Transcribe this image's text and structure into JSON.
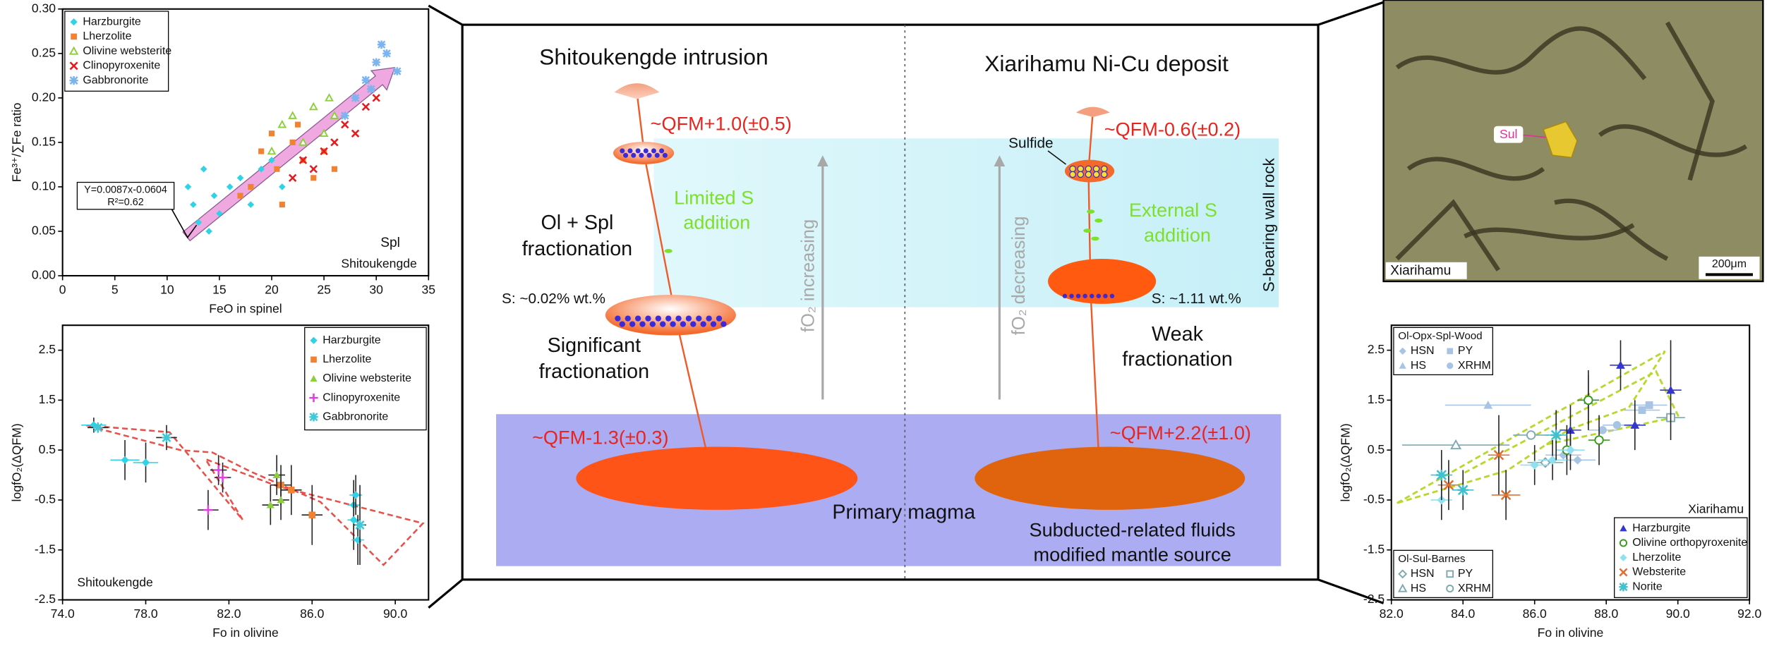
{
  "chart_data": [
    {
      "type": "scatter",
      "xlabel": "FeO in spinel",
      "ylabel": "Fe³⁺/∑Fe ratio",
      "xlim": [
        0,
        35
      ],
      "xticks": [
        0,
        5,
        10,
        15,
        20,
        25,
        30,
        35
      ],
      "ylim": [
        0,
        0.3
      ],
      "yticks": [
        {
          "value": 0,
          "label": "0.00"
        },
        {
          "value": 0.05,
          "label": "0.05"
        },
        {
          "value": 0.1,
          "label": "0.10"
        },
        {
          "value": 0.15,
          "label": "0.15"
        },
        {
          "value": 0.2,
          "label": "0.20"
        },
        {
          "value": 0.25,
          "label": "0.25"
        },
        {
          "value": 0.3,
          "label": "0.30"
        }
      ],
      "legend": "upper left",
      "annotations": [
        "Spl",
        "Shitoukengde"
      ],
      "equation": [
        "Y=0.0087x-0.0604",
        "R²=0.62"
      ],
      "series": [
        {
          "name": "Harzburgite",
          "color": "#2fd2e6",
          "marker": "diamond",
          "x": [
            12,
            12.5,
            13,
            13.5,
            14,
            14.5,
            15,
            16,
            17,
            18,
            19,
            20,
            21
          ],
          "values": [
            0.1,
            0.08,
            0.06,
            0.12,
            0.05,
            0.09,
            0.07,
            0.1,
            0.11,
            0.08,
            0.12,
            0.13,
            0.1
          ]
        },
        {
          "name": "Lherzolite",
          "color": "#f08232",
          "marker": "square",
          "x": [
            17,
            18,
            19,
            20,
            20.5,
            21,
            22,
            22.5,
            23,
            24,
            25,
            26
          ],
          "values": [
            0.09,
            0.1,
            0.14,
            0.16,
            0.12,
            0.08,
            0.15,
            0.17,
            0.13,
            0.11,
            0.14,
            0.12
          ]
        },
        {
          "name": "Olivine websterite",
          "color": "#8ccf3c",
          "marker": "triangle-open",
          "x": [
            20,
            21,
            22,
            23,
            24,
            25,
            25.5,
            26
          ],
          "values": [
            0.14,
            0.17,
            0.18,
            0.15,
            0.19,
            0.16,
            0.2,
            0.18
          ]
        },
        {
          "name": "Clinopyroxenite",
          "color": "#e8191e",
          "marker": "cross",
          "x": [
            22,
            23,
            24,
            25,
            26,
            27,
            28,
            29,
            30
          ],
          "values": [
            0.11,
            0.13,
            0.12,
            0.14,
            0.15,
            0.17,
            0.16,
            0.19,
            0.2
          ]
        },
        {
          "name": "Gabbronorite",
          "color": "#7cb4f0",
          "marker": "asterisk",
          "x": [
            27,
            28,
            29,
            30,
            31,
            32,
            29.5,
            30.5
          ],
          "values": [
            0.18,
            0.2,
            0.22,
            0.24,
            0.25,
            0.23,
            0.21,
            0.26
          ]
        }
      ]
    },
    {
      "type": "scatter",
      "xlabel": "Fo in olivine",
      "ylabel": "logfO₂(ΔQFM)",
      "xlim": [
        74,
        91.6
      ],
      "xticks": [
        {
          "value": 74,
          "label": "74.0"
        },
        {
          "value": 78,
          "label": "78.0"
        },
        {
          "value": 82,
          "label": "82.0"
        },
        {
          "value": 86,
          "label": "86.0"
        },
        {
          "value": 90,
          "label": "90.0"
        }
      ],
      "ylim": [
        -2.5,
        3
      ],
      "yticks": [
        2.5,
        1.5,
        0.5,
        -0.5,
        -1.5,
        -2.5
      ],
      "legend": "upper right",
      "annotations": [
        "Shitoukengde"
      ],
      "series": [
        {
          "name": "Harzburgite",
          "color": "#2fd2e6",
          "marker": "diamond",
          "x": [
            75.5,
            77,
            78,
            88,
            88,
            88.2,
            88.1
          ],
          "values": [
            1.0,
            0.3,
            0.25,
            -0.6,
            -0.9,
            -1.3,
            -0.4
          ],
          "xerr": [
            0.6,
            0.7,
            0.6,
            0.3,
            0.3,
            0.3,
            0.3
          ],
          "yerr": [
            0.15,
            0.4,
            0.4,
            0.5,
            0.6,
            0.5,
            0.4
          ]
        },
        {
          "name": "Lherzolite",
          "color": "#f08232",
          "marker": "square",
          "x": [
            84.5,
            85,
            86
          ],
          "values": [
            -0.2,
            -0.3,
            -0.8
          ],
          "xerr": [
            0.5,
            0.5,
            0.5
          ],
          "yerr": [
            0.4,
            0.5,
            0.6
          ]
        },
        {
          "name": "Olivine websterite",
          "color": "#8ccf3c",
          "marker": "triangle",
          "x": [
            84,
            84.3,
            84.5
          ],
          "values": [
            -0.6,
            0,
            -0.5
          ],
          "xerr": [
            0.4,
            0.4,
            0.4
          ],
          "yerr": [
            0.4,
            0.4,
            0.4
          ]
        },
        {
          "name": "Clinopyroxenite",
          "color": "#e040e0",
          "marker": "plus",
          "x": [
            81,
            81.5,
            81.7
          ],
          "values": [
            -0.7,
            0.1,
            -0.05
          ],
          "xerr": [
            0.5,
            0.4,
            0.4
          ],
          "yerr": [
            0.4,
            0.3,
            0.3
          ]
        },
        {
          "name": "Gabbronorite",
          "color": "#40c8d8",
          "marker": "asterisk",
          "x": [
            75.7,
            79,
            88.3
          ],
          "values": [
            0.95,
            0.75,
            -1.0
          ],
          "xerr": [
            0.5,
            0.5,
            0.3
          ],
          "yerr": [
            0.1,
            0.25,
            0.8
          ]
        }
      ]
    },
    {
      "type": "scatter",
      "xlabel": "Fo in olivine",
      "ylabel": "logfO₂(ΔQFM)",
      "xlim": [
        82,
        92
      ],
      "xticks": [
        {
          "value": 82,
          "label": "82.0"
        },
        {
          "value": 84,
          "label": "84.0"
        },
        {
          "value": 86,
          "label": "86.0"
        },
        {
          "value": 88,
          "label": "88.0"
        },
        {
          "value": 90,
          "label": "90.0"
        },
        {
          "value": 92,
          "label": "92.0"
        }
      ],
      "ylim": [
        -2.5,
        3
      ],
      "yticks": [
        2.5,
        1.5,
        0.5,
        -0.5,
        -1.5,
        -2.5
      ],
      "legend": "lower right",
      "annotations": [
        "Xiarihamu"
      ],
      "series": [
        {
          "name": "Harzburgite",
          "color": "#3535d0",
          "marker": "triangle",
          "x": [
            87.5,
            88.4,
            88.8,
            89.8,
            87
          ],
          "values": [
            1.5,
            2.2,
            1.0,
            1.7,
            0.9
          ],
          "xerr": [
            0.3,
            0.3,
            0.3,
            0.3,
            0.3
          ],
          "yerr": [
            0.5,
            0.5,
            0.5,
            1.0,
            0.5
          ]
        },
        {
          "name": "Olivine orthopyroxenite",
          "color": "#3a9a20",
          "marker": "circle-open",
          "x": [
            87.5,
            87.8,
            86.9
          ],
          "values": [
            1.5,
            0.7,
            0.5
          ],
          "xerr": [
            0.3,
            0.3,
            0.3
          ],
          "yerr": [
            0.6,
            0.5,
            0.5
          ]
        },
        {
          "name": "Lherzolite",
          "color": "#8fe0f0",
          "marker": "diamond",
          "x": [
            86,
            86.5,
            87,
            83.4
          ],
          "values": [
            0.2,
            0.3,
            0.5,
            -0.5
          ],
          "xerr": [
            0.4,
            0.4,
            0.4,
            0.3
          ],
          "yerr": [
            0.4,
            0.4,
            0.4,
            0.4
          ]
        },
        {
          "name": "Websterite",
          "color": "#e07030",
          "marker": "cross",
          "x": [
            83.6,
            85,
            85.2
          ],
          "values": [
            -0.2,
            0.4,
            -0.4
          ],
          "xerr": [
            0.3,
            0.3,
            0.4
          ],
          "yerr": [
            0.5,
            0.8,
            0.5
          ]
        },
        {
          "name": "Norite",
          "color": "#40c0d0",
          "marker": "asterisk",
          "x": [
            83.4,
            84,
            86.6
          ],
          "values": [
            0,
            -0.3,
            0.8
          ],
          "xerr": [
            0.3,
            0.3,
            0.3
          ],
          "yerr": [
            0.5,
            0.4,
            0.5
          ]
        }
      ],
      "groups": [
        {
          "title": "Ol-Opx-Spl-Wood",
          "legend": "upper left",
          "series": [
            {
              "name": "HSN",
              "color": "#a8c4e4",
              "marker": "diamond",
              "x": [
                86.8,
                87.2
              ],
              "values": [
                0.4,
                0.3
              ],
              "xerr": [
                0.5,
                0.5
              ]
            },
            {
              "name": "PY",
              "color": "#a8c4e4",
              "marker": "square",
              "x": [
                89,
                89.2
              ],
              "values": [
                1.3,
                1.4
              ],
              "xerr": [
                0.5,
                0.5
              ]
            },
            {
              "name": "HS",
              "color": "#a8c4e4",
              "marker": "triangle",
              "x": [
                84.7
              ],
              "values": [
                1.4
              ],
              "xerr": [
                1.2
              ]
            },
            {
              "name": "XRHM",
              "color": "#a8c4e4",
              "marker": "circle",
              "x": [
                87.9,
                88.3
              ],
              "values": [
                0.9,
                1.0
              ],
              "xerr": [
                0.4,
                0.4
              ]
            }
          ]
        },
        {
          "title": "Ol-Sul-Barnes",
          "legend": "lower left",
          "series": [
            {
              "name": "HSN",
              "color": "#7fa8b0",
              "marker": "diamond-open",
              "x": [
                86.3
              ],
              "values": [
                0.25
              ],
              "xerr": [
                0.5
              ]
            },
            {
              "name": "PY",
              "color": "#7fa8b0",
              "marker": "square-open",
              "x": [
                89.8
              ],
              "values": [
                1.15
              ],
              "xerr": [
                0.4
              ]
            },
            {
              "name": "HS",
              "color": "#7fa8b0",
              "marker": "triangle-open",
              "x": [
                83.8
              ],
              "values": [
                0.6
              ],
              "xerr": [
                1.5
              ]
            },
            {
              "name": "XRHM",
              "color": "#7fa8b0",
              "marker": "circle-open",
              "x": [
                85.9
              ],
              "values": [
                0.8
              ],
              "xerr": [
                0.5
              ]
            }
          ]
        }
      ]
    }
  ],
  "diagram": {
    "left_title": "Shitoukengde intrusion",
    "right_title": "Xiarihamu Ni-Cu deposit",
    "left_top_qfm": "~QFM+1.0(±0.5)",
    "left_s_addition": [
      "Limited  S",
      "addition"
    ],
    "left_fractionation_1": [
      "Ol + Spl",
      "fractionation"
    ],
    "left_s_content": "S: ~0.02% wt.%",
    "left_fractionation_2": [
      "Significant",
      "fractionation"
    ],
    "left_trend": "fO₂ increasing",
    "left_source_qfm": "~QFM-1.3(±0.3)",
    "left_source": "Primary magma",
    "right_top_qfm": "~QFM-0.6(±0.2)",
    "sulfide": "Sulfide",
    "right_s_addition": [
      "External S",
      "addition"
    ],
    "right_s_content": "S: ~1.11 wt.%",
    "right_fractionation": [
      "Weak",
      "fractionation"
    ],
    "right_trend": "fO₂ decreasing",
    "wall_rock": "S-bearing wall rock",
    "right_source_qfm": "~QFM+2.2(±1.0)",
    "right_source": [
      "Subducted-related fluids",
      "modified mantle source"
    ]
  },
  "photo": {
    "label": "Xiarihamu",
    "mineral": "Sul",
    "scale": "200μm"
  }
}
